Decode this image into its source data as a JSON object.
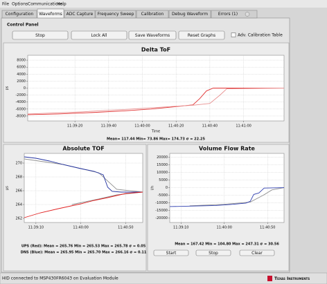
{
  "menu": [
    "File",
    "Options",
    "Communications",
    "Help"
  ],
  "tabs": [
    "Configuration",
    "Waveforms",
    "ADC Capture",
    "Frequency Sweep",
    "Calibration",
    "Debug Waveform",
    "Errors (1)"
  ],
  "active_tab": 1,
  "control_panel": {
    "title": "Control Panel",
    "buttons": [
      "Stop",
      "Lock All",
      "Save Waveforms",
      "Reset Graphs"
    ],
    "checkbox": "Adv. Calibration Table"
  },
  "chart_data": [
    {
      "type": "line",
      "title": "Delta ToF",
      "ylabel": "ps",
      "xlabel": "Time",
      "xlim": [
        41932,
        42084
      ],
      "xticks": [
        {
          "value": 41960,
          "label": "11:39:20"
        },
        {
          "value": 41980,
          "label": "11:39:40"
        },
        {
          "value": 42000,
          "label": "11:40:00"
        },
        {
          "value": 42020,
          "label": "11:40:20"
        },
        {
          "value": 42040,
          "label": "11:40:40"
        },
        {
          "value": 42060,
          "label": "11:41:00"
        }
      ],
      "ylim": [
        -9400,
        9400
      ],
      "yticks": [
        8000,
        6000,
        4000,
        2000,
        0,
        -2000,
        -4000,
        -6000,
        -8000
      ],
      "grid": true,
      "series": [
        {
          "color": "#e03030",
          "x": [
            41932,
            41950,
            41970,
            41990,
            42005,
            42020,
            42030,
            42034,
            42038,
            42042,
            42084
          ],
          "values": [
            -7600,
            -7400,
            -7000,
            -6500,
            -6000,
            -5300,
            -4800,
            -3000,
            -800,
            0,
            0
          ]
        },
        {
          "color": "#e89090",
          "x": [
            41932,
            41960,
            41990,
            42010,
            42030,
            42040,
            42046,
            42050,
            42084
          ],
          "values": [
            -7400,
            -6900,
            -6100,
            -5500,
            -4900,
            -4400,
            -2000,
            -200,
            0
          ]
        }
      ],
      "stats": [
        "Mean= 117.44 Min= 73.86 Max= 174.73 σ = 22.25"
      ]
    },
    {
      "type": "line",
      "title": "Absolute TOF",
      "ylabel": "μs",
      "xlim": [
        41937,
        42069
      ],
      "xticks": [
        {
          "value": 41950,
          "label": "11:39:10"
        },
        {
          "value": 42000,
          "label": "11:40:00"
        },
        {
          "value": 42050,
          "label": "11:40:50"
        }
      ],
      "ylim": [
        261.4,
        271.4
      ],
      "yticks": [
        270,
        268,
        266,
        264,
        262
      ],
      "grid": true,
      "series": [
        {
          "color": "#909090",
          "x": [
            41937,
            41980,
            42000,
            42020,
            42040,
            42069
          ],
          "values": [
            270.6,
            269.8,
            269.2,
            268.6,
            266.2,
            265.8
          ]
        },
        {
          "color": "#909090",
          "x": [
            41990,
            42020,
            42040,
            42069
          ],
          "values": [
            264.0,
            264.8,
            265.4,
            265.8
          ]
        },
        {
          "color": "#2030a0",
          "x": [
            41937,
            41950,
            41965,
            41980,
            42000,
            42015,
            42025,
            42030,
            42035,
            42045,
            42069
          ],
          "values": [
            270.9,
            270.7,
            270.3,
            269.8,
            269.2,
            268.8,
            268.3,
            266.5,
            265.9,
            265.8,
            265.8
          ]
        },
        {
          "color": "#e02020",
          "x": [
            41937,
            41955,
            41975,
            42000,
            42015,
            42030,
            42040,
            42050,
            42069
          ],
          "values": [
            262.1,
            262.8,
            263.4,
            264.1,
            264.6,
            265.0,
            265.3,
            265.6,
            265.8
          ]
        }
      ],
      "stats": [
        "UPS (Red): Mean = 265.76 Min = 265.53 Max = 265.78 σ = 0.05",
        "DNS (Blue): Mean = 265.95 Min = 265.70 Max = 266.16 σ = 0.11"
      ]
    },
    {
      "type": "line",
      "title": "Volume Flow Rate",
      "ylabel": "l/h",
      "xlim": [
        41937,
        42069
      ],
      "xticks": [
        {
          "value": 41950,
          "label": "11:39:10"
        },
        {
          "value": 42000,
          "label": "11:40:00"
        },
        {
          "value": 42050,
          "label": "11:40:50"
        }
      ],
      "ylim": [
        -23000,
        22600
      ],
      "yticks": [
        20000,
        15000,
        10000,
        5000,
        0,
        -5000,
        -10000,
        -15000,
        -20000
      ],
      "grid": true,
      "series": [
        {
          "color": "#909090",
          "x": [
            41960,
            42000,
            42030,
            42045,
            42055,
            42069
          ],
          "values": [
            -12000,
            -11000,
            -9500,
            -5000,
            -1500,
            0
          ]
        },
        {
          "color": "#3040b0",
          "x": [
            41937,
            41960,
            41990,
            42010,
            42025,
            42030,
            42034,
            42040,
            42046,
            42069
          ],
          "values": [
            -12500,
            -12200,
            -11800,
            -11000,
            -10200,
            -9000,
            -4500,
            -3500,
            -300,
            0
          ]
        }
      ],
      "stats": [
        "Mean = 167.42 Min = 104.80 Max = 247.31 σ = 30.56"
      ],
      "buttons": [
        "Start",
        "Stop",
        "Clear"
      ]
    }
  ],
  "status": "HID connected to MSP430FR6043 on Evaluation Module",
  "logo": "Texas Instruments"
}
